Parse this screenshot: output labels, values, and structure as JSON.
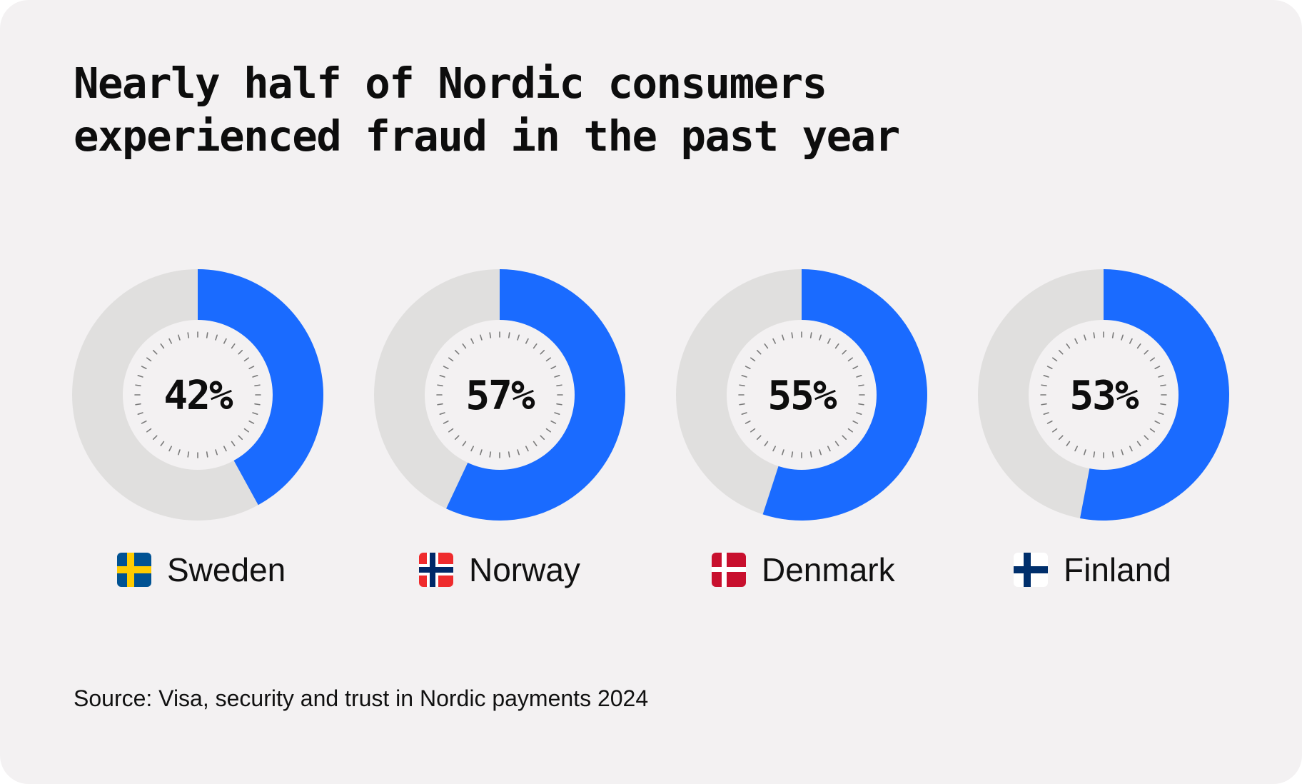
{
  "chart_data": {
    "type": "pie",
    "title_lines": [
      "Nearly half of Nordic consumers",
      "experienced fraud in the past year"
    ],
    "categories": [
      "Sweden",
      "Norway",
      "Denmark",
      "Finland"
    ],
    "values": [
      42,
      57,
      55,
      53
    ],
    "value_labels": [
      "42%",
      "57%",
      "55%",
      "53%"
    ],
    "flag_icons": [
      "sweden-flag-icon",
      "norway-flag-icon",
      "denmark-flag-icon",
      "finland-flag-icon"
    ],
    "source": "Source: Visa, security and trust in Nordic payments 2024",
    "colors": {
      "value": "#1a6bff",
      "remainder": "#e0dfde",
      "inner": "#f3f1f2",
      "ticks": "#7a7a7a"
    }
  }
}
